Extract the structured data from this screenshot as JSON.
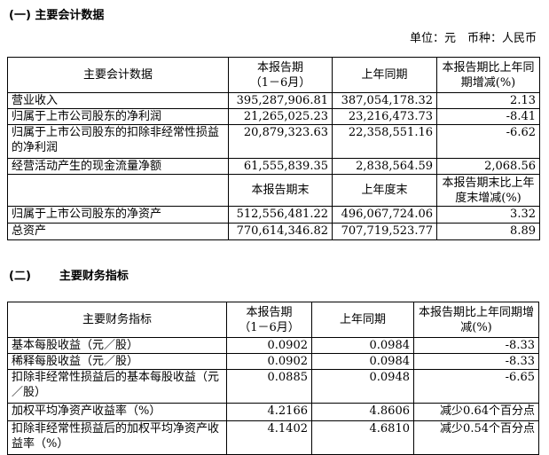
{
  "section1": {
    "title": "(一) 主要会计数据",
    "unit_label": "单位：元　币种：人民币",
    "header": [
      "主要会计数据",
      "本报告期\n（1－6月）",
      "上年同期",
      "本报告期比上年同期增减(%)"
    ],
    "rows": [
      [
        "营业收入",
        "395,287,906.81",
        "387,054,178.32",
        "2.13"
      ],
      [
        "归属于上市公司股东的净利润",
        "21,265,025.23",
        "23,216,473.73",
        "-8.41"
      ],
      [
        "归属于上市公司股东的扣除非经常性损益的净利润",
        "20,879,323.63",
        "22,358,551.16",
        "-6.62"
      ],
      [
        "经营活动产生的现金流量净额",
        "61,555,839.35",
        "2,838,564.59",
        "2,068.56"
      ]
    ],
    "header2": [
      "",
      "本报告期末",
      "上年度末",
      "本报告期末比上年度末增减(%)"
    ],
    "rows2": [
      [
        "归属于上市公司股东的净资产",
        "512,556,481.22",
        "496,067,724.06",
        "3.32"
      ],
      [
        "总资产",
        "770,614,346.82",
        "707,719,523.77",
        "8.89"
      ]
    ]
  },
  "section2": {
    "title_num": "(二)",
    "title": "主要财务指标",
    "header": [
      "主要财务指标",
      "本报告期\n（1－6月）",
      "上年同期",
      "本报告期比上年同期增减(%)"
    ],
    "rows": [
      [
        "基本每股收益（元／股）",
        "0.0902",
        "0.0984",
        "-8.33"
      ],
      [
        "稀释每股收益（元／股）",
        "0.0902",
        "0.0984",
        "-8.33"
      ],
      [
        "扣除非经常性损益后的基本每股收益（元／股）",
        "0.0885",
        "0.0948",
        "-6.65"
      ],
      [
        "加权平均净资产收益率（%）",
        "4.2166",
        "4.8606",
        "减少0.64个百分点"
      ],
      [
        "扣除非经常性损益后的加权平均净资产收益率（%）",
        "4.1402",
        "4.6810",
        "减少0.54个百分点"
      ]
    ]
  }
}
